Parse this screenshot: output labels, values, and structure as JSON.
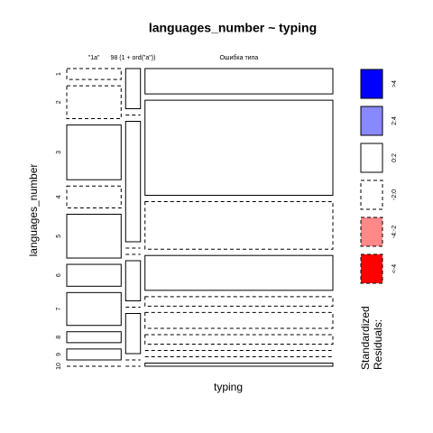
{
  "chart_data": {
    "type": "mosaic",
    "title": "languages_number ~ typing",
    "xlabel": "typing",
    "ylabel": "languages_number",
    "categories": [
      "\"1a\"",
      "98 (1 + ord(\"a\"))",
      "Ошибка типа"
    ],
    "rows": [
      "1",
      "2",
      "3",
      "4",
      "5",
      "6",
      "7",
      "8",
      "9",
      "10"
    ],
    "counts": [
      [
        1,
        3,
        5,
        2,
        4,
        2,
        3,
        1,
        1,
        0
      ],
      [
        1,
        0,
        3,
        0,
        0,
        1,
        0,
        1,
        0,
        0
      ],
      [
        8,
        30,
        15,
        11,
        3,
        5,
        3,
        0,
        0,
        1
      ]
    ],
    "shading": [
      [
        "-2:0",
        "-2:0",
        "0:2",
        "-2:0",
        "0:2",
        "0:2",
        "0:2",
        "0:2",
        "0:2",
        "-2:0"
      ],
      [
        "0:2",
        "-2:0",
        "0:2",
        "-2:0",
        "-2:0",
        "0:2",
        "-2:0",
        "0:2",
        "-2:0",
        "-2:0"
      ],
      [
        "0:2",
        "0:2",
        "-2:0",
        "0:2",
        "-2:0",
        "-2:0",
        "-2:0",
        "-2:0",
        "-2:0",
        "0:2"
      ]
    ],
    "legend_title": [
      "Standardized",
      "Residuals:"
    ],
    "legend": [
      {
        "label": ">4",
        "color": "#0000ff",
        "dashed": false
      },
      {
        "label": "2:4",
        "color": "#8888ff",
        "dashed": false
      },
      {
        "label": "0:2",
        "color": "#ffffff",
        "dashed": false
      },
      {
        "label": "-2:0",
        "color": "#ffffff",
        "dashed": true
      },
      {
        "label": "-4:-2",
        "color": "#ff8888",
        "dashed": true
      },
      {
        "label": "<-4",
        "color": "#ff0000",
        "dashed": true
      }
    ]
  }
}
